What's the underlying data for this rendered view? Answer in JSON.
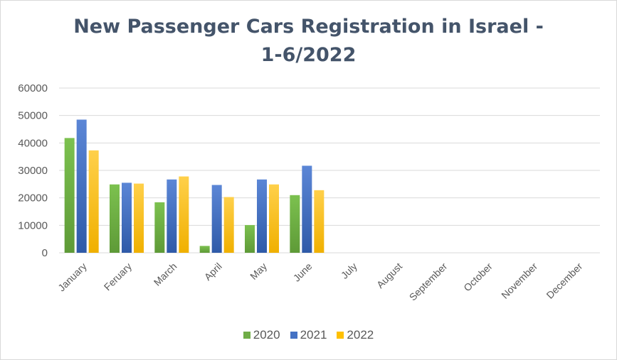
{
  "chart_data": {
    "type": "bar",
    "title_line1": "New Passenger Cars Registration in Israel -",
    "title_line2": "1-6/2022",
    "categories": [
      "January",
      "Feruary",
      "March",
      "April",
      "May",
      "June",
      "July",
      "August",
      "September",
      "October",
      "November",
      "December"
    ],
    "series": [
      {
        "name": "2020",
        "color": "#70ad47",
        "values": [
          41800,
          24900,
          18400,
          2500,
          10100,
          21000,
          null,
          null,
          null,
          null,
          null,
          null
        ]
      },
      {
        "name": "2021",
        "color": "#4472c4",
        "values": [
          48500,
          25500,
          26700,
          24700,
          26700,
          31700,
          null,
          null,
          null,
          null,
          null,
          null
        ]
      },
      {
        "name": "2022",
        "color": "#ffc000",
        "values": [
          37300,
          25200,
          27800,
          20300,
          24900,
          22800,
          null,
          null,
          null,
          null,
          null,
          null
        ]
      }
    ],
    "yticks": [
      "0",
      "10000",
      "20000",
      "30000",
      "40000",
      "50000",
      "60000"
    ],
    "ylim": [
      0,
      60000
    ],
    "xlabel": "",
    "ylabel": "",
    "grid": true,
    "legend_position": "bottom"
  }
}
